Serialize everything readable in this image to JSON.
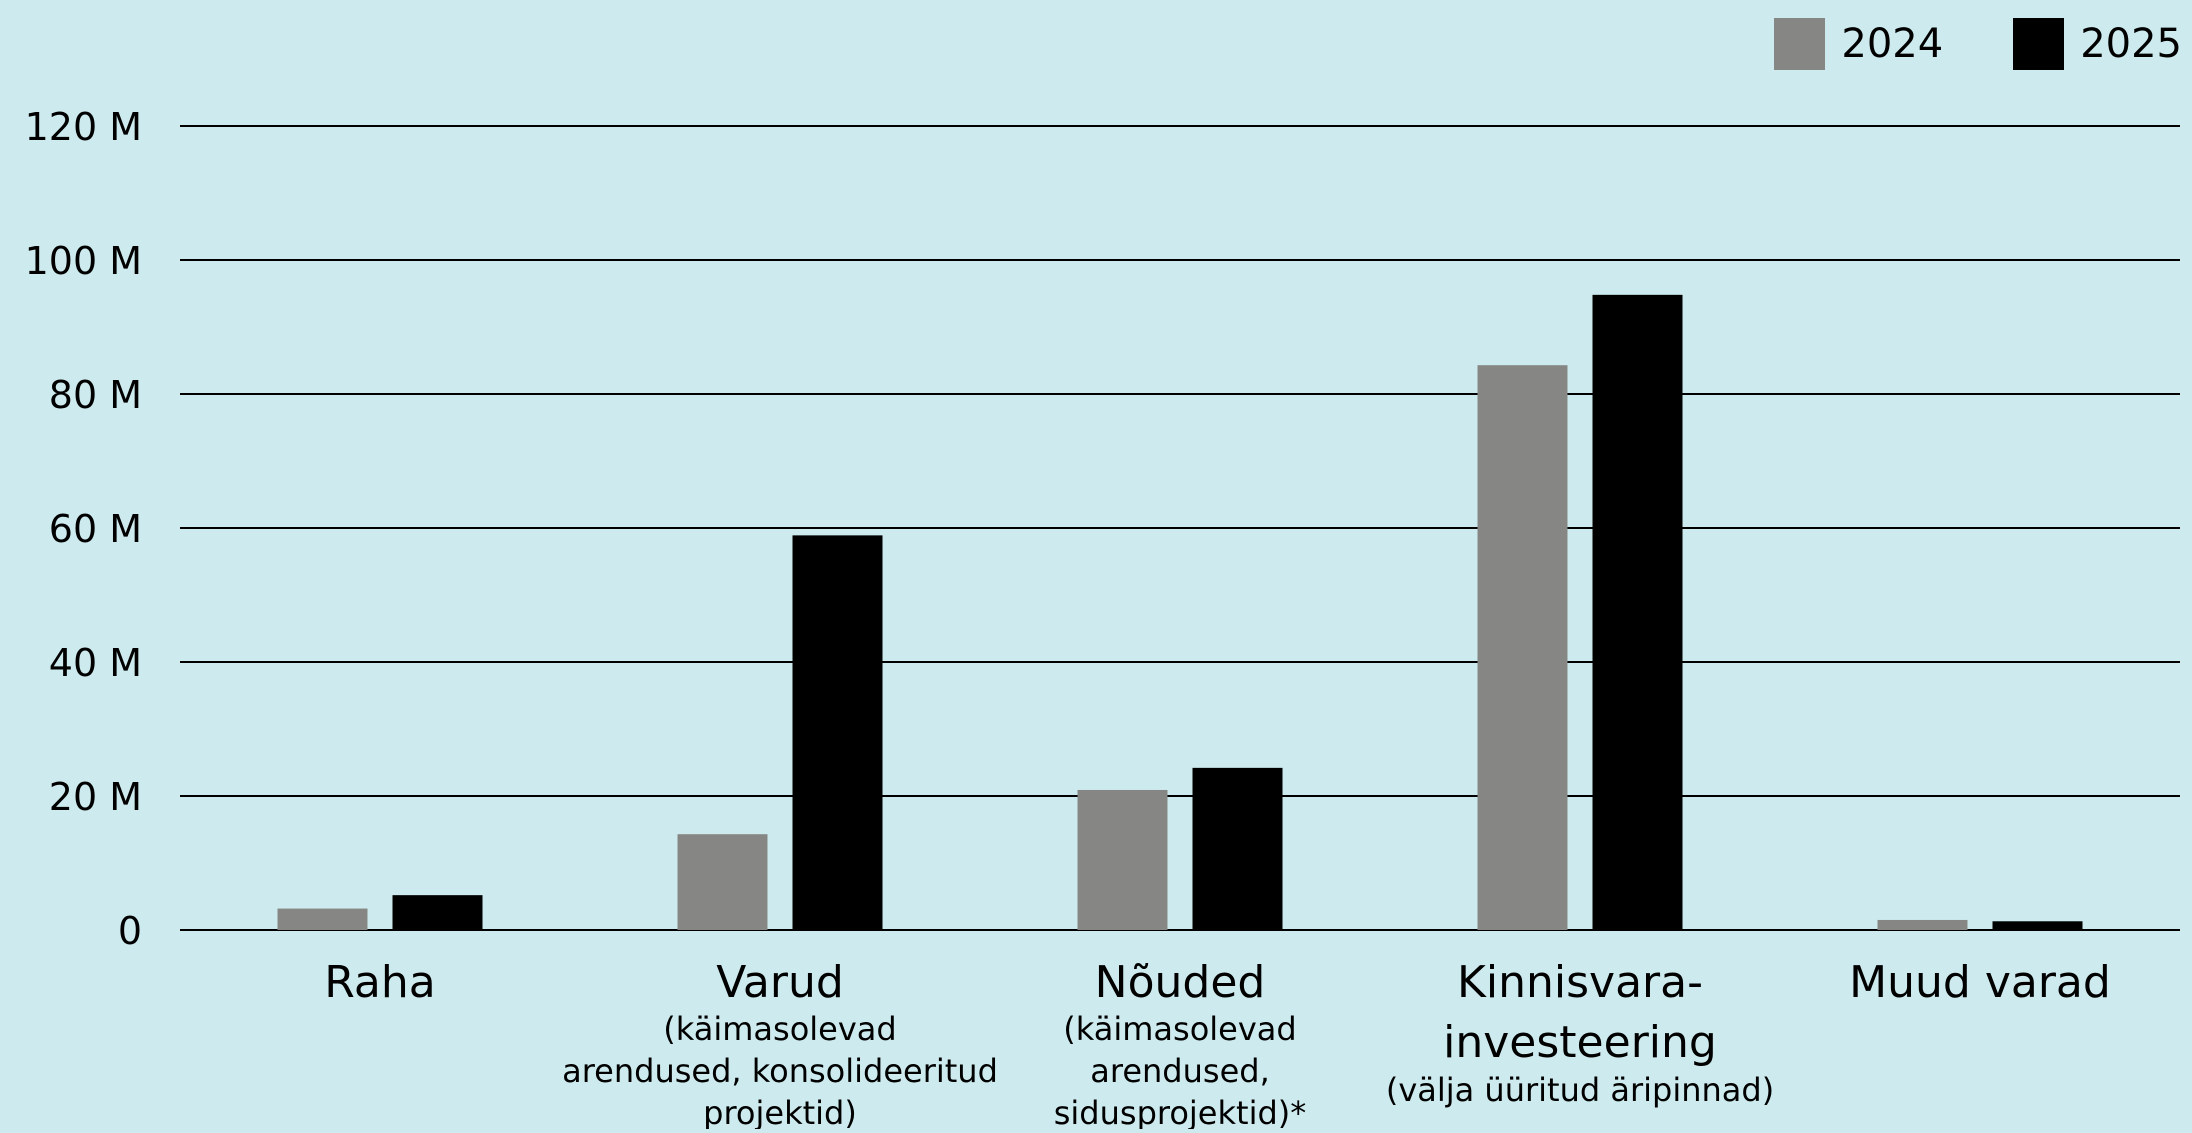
{
  "chart_data": {
    "type": "bar",
    "categories": [
      "Raha",
      "Varud",
      "Nõuded",
      "Kinnisvara-",
      "Muud varad"
    ],
    "category_labels": [
      [
        "Raha"
      ],
      [
        "Varud"
      ],
      [
        "Nõuded"
      ],
      [
        "Kinnisvara-",
        "investeering"
      ],
      [
        "Muud varad"
      ]
    ],
    "category_sublabels": [
      [],
      [
        "(käimasolevad",
        "arendused, konsolideeritud",
        "projektid)"
      ],
      [
        "(käimasolevad",
        "arendused,",
        "sidusprojektid)*"
      ],
      [
        "(välja üüritud äripinnad)"
      ],
      []
    ],
    "series": [
      {
        "name": "2024",
        "color": "#868784",
        "values": [
          3.2,
          14.3,
          20.9,
          84.3,
          1.5
        ]
      },
      {
        "name": "2025",
        "color": "#000000",
        "values": [
          5.2,
          58.9,
          24.2,
          94.8,
          1.3
        ]
      }
    ],
    "ylim": [
      0,
      120
    ],
    "yticks": [
      0,
      20,
      40,
      60,
      80,
      100,
      120
    ],
    "ytick_labels": [
      "0",
      "20 M",
      "40 M",
      "60 M",
      "80 M",
      "100 M",
      "120 M"
    ],
    "grid": true,
    "legend_position": "top-right",
    "title": "",
    "xlabel": "",
    "ylabel": ""
  }
}
